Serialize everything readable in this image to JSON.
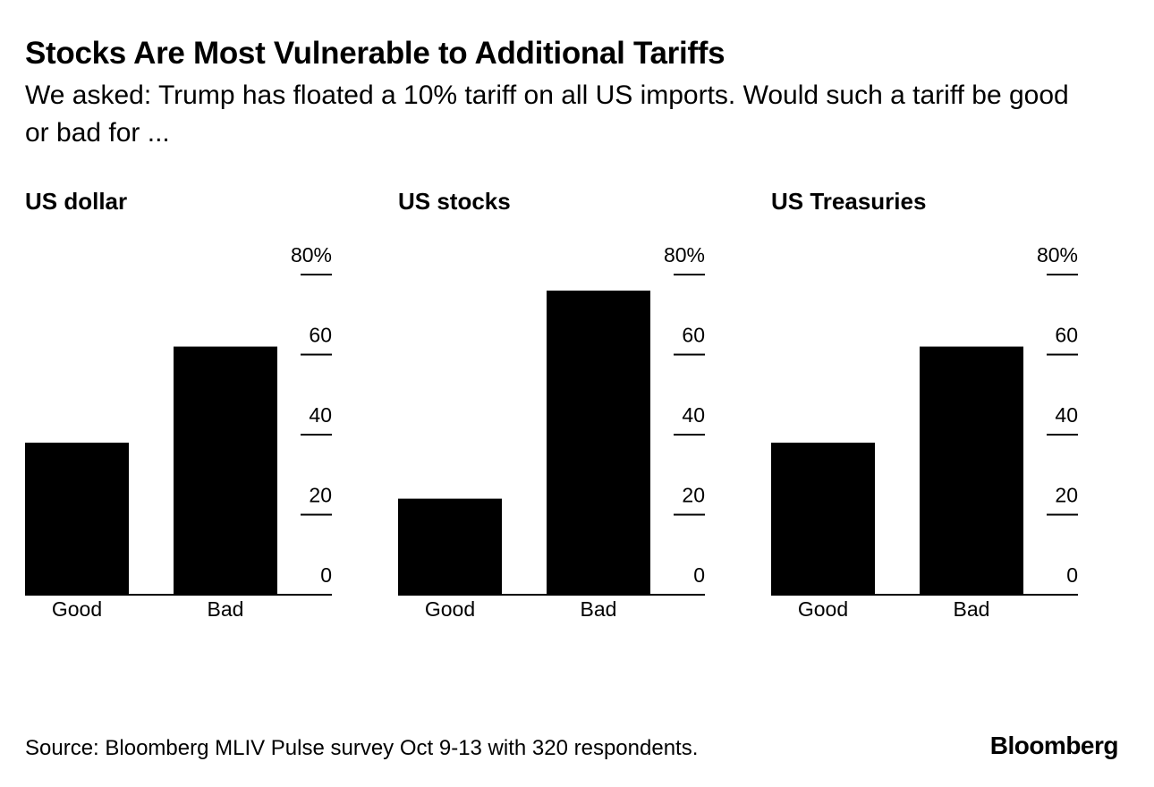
{
  "title": "Stocks Are Most Vulnerable to Additional Tariffs",
  "subtitle": "We asked: Trump has floated a 10% tariff on all US imports. Would such a tariff be good or bad for ...",
  "source": "Source: Bloomberg MLIV Pulse survey Oct 9-13 with 320 respondents.",
  "logo": "Bloomberg",
  "chart_data": [
    {
      "type": "bar",
      "title": "US dollar",
      "categories": [
        "Good",
        "Bad"
      ],
      "values": [
        38,
        62
      ],
      "ylim": [
        0,
        80
      ],
      "yticks": [
        0,
        20,
        40,
        60,
        80
      ],
      "ytick_labels": [
        "0",
        "20",
        "40",
        "60",
        "80%"
      ],
      "axis_side": "right",
      "grid": false,
      "color": "#000000"
    },
    {
      "type": "bar",
      "title": "US stocks",
      "categories": [
        "Good",
        "Bad"
      ],
      "values": [
        24,
        76
      ],
      "ylim": [
        0,
        80
      ],
      "yticks": [
        0,
        20,
        40,
        60,
        80
      ],
      "ytick_labels": [
        "0",
        "20",
        "40",
        "60",
        "80%"
      ],
      "axis_side": "right",
      "grid": false,
      "color": "#000000"
    },
    {
      "type": "bar",
      "title": "US Treasuries",
      "categories": [
        "Good",
        "Bad"
      ],
      "values": [
        38,
        62
      ],
      "ylim": [
        0,
        80
      ],
      "yticks": [
        0,
        20,
        40,
        60,
        80
      ],
      "ytick_labels": [
        "0",
        "20",
        "40",
        "60",
        "80%"
      ],
      "axis_side": "right",
      "grid": false,
      "color": "#000000"
    }
  ]
}
